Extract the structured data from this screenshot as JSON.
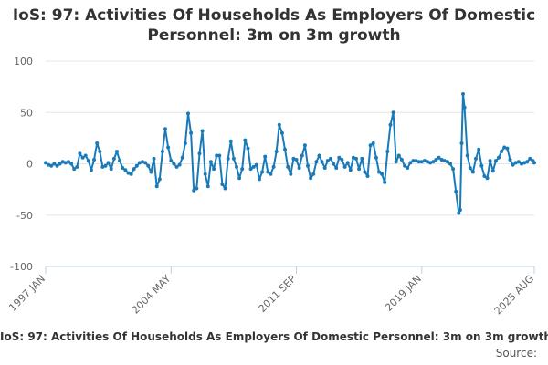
{
  "title": "IoS: 97: Activities Of Households As Employers Of Domestic Personnel: 3m on 3m growth",
  "footer": {
    "title": "IoS: 97: Activities Of Households As Employers Of Domestic Personnel: 3m on 3m growth",
    "source": "Source:"
  },
  "chart_data": {
    "type": "line",
    "title": "IoS: 97: Activities Of Households As Employers Of Domestic Personnel: 3m on 3m growth",
    "xlabel": "",
    "ylabel": "",
    "ylim": [
      -100,
      100
    ],
    "yticks": [
      100,
      50,
      0,
      -50,
      -100
    ],
    "xlim": [
      "1997 JAN",
      "2025 AUG"
    ],
    "xticks": [
      "1997 JAN",
      "2004 MAY",
      "2011 SEP",
      "2019 JAN",
      "2025 AUG"
    ],
    "grid": true,
    "legend": "none",
    "color": "#1a7ab8",
    "series": [
      {
        "markers": true,
        "points": [
          [
            "1997 JAN",
            1
          ],
          [
            "1997 MAR",
            -1
          ],
          [
            "1997 MAY",
            -2
          ],
          [
            "1997 JUL",
            0
          ],
          [
            "1997 SEP",
            -2
          ],
          [
            "1997 NOV",
            0
          ],
          [
            "1998 JAN",
            2
          ],
          [
            "1998 MAR",
            1
          ],
          [
            "1998 MAY",
            2
          ],
          [
            "1998 JUL",
            0
          ],
          [
            "1998 SEP",
            -5
          ],
          [
            "1998 NOV",
            -3
          ],
          [
            "1999 JAN",
            10
          ],
          [
            "1999 MAR",
            6
          ],
          [
            "1999 MAY",
            8
          ],
          [
            "1999 JUL",
            3
          ],
          [
            "1999 SEP",
            -6
          ],
          [
            "1999 NOV",
            4
          ],
          [
            "2000 JAN",
            20
          ],
          [
            "2000 MAR",
            12
          ],
          [
            "2000 MAY",
            -3
          ],
          [
            "2000 JUL",
            -2
          ],
          [
            "2000 SEP",
            1
          ],
          [
            "2000 NOV",
            -5
          ],
          [
            "2001 JAN",
            5
          ],
          [
            "2001 MAR",
            12
          ],
          [
            "2001 MAY",
            3
          ],
          [
            "2001 JUL",
            -4
          ],
          [
            "2001 SEP",
            -6
          ],
          [
            "2001 NOV",
            -9
          ],
          [
            "2002 JAN",
            -10
          ],
          [
            "2002 MAR",
            -5
          ],
          [
            "2002 MAY",
            -2
          ],
          [
            "2002 JUL",
            1
          ],
          [
            "2002 SEP",
            2
          ],
          [
            "2002 NOV",
            1
          ],
          [
            "2003 JAN",
            -2
          ],
          [
            "2003 MAR",
            -8
          ],
          [
            "2003 MAY",
            5
          ],
          [
            "2003 JUL",
            -22
          ],
          [
            "2003 SEP",
            -15
          ],
          [
            "2003 NOV",
            12
          ],
          [
            "2004 JAN",
            34
          ],
          [
            "2004 MAR",
            16
          ],
          [
            "2004 MAY",
            3
          ],
          [
            "2004 JUL",
            0
          ],
          [
            "2004 SEP",
            -3
          ],
          [
            "2004 NOV",
            -1
          ],
          [
            "2005 JAN",
            6
          ],
          [
            "2005 MAR",
            20
          ],
          [
            "2005 MAY",
            49
          ],
          [
            "2005 JUL",
            30
          ],
          [
            "2005 SEP",
            -26
          ],
          [
            "2005 NOV",
            -24
          ],
          [
            "2006 JAN",
            10
          ],
          [
            "2006 MAR",
            32
          ],
          [
            "2006 MAY",
            -10
          ],
          [
            "2006 JUL",
            -22
          ],
          [
            "2006 SEP",
            2
          ],
          [
            "2006 NOV",
            -5
          ],
          [
            "2007 JAN",
            8
          ],
          [
            "2007 MAR",
            8
          ],
          [
            "2007 MAY",
            -20
          ],
          [
            "2007 JUL",
            -24
          ],
          [
            "2007 SEP",
            5
          ],
          [
            "2007 NOV",
            22
          ],
          [
            "2008 JAN",
            5
          ],
          [
            "2008 MAR",
            -3
          ],
          [
            "2008 MAY",
            -14
          ],
          [
            "2008 JUL",
            -5
          ],
          [
            "2008 SEP",
            23
          ],
          [
            "2008 NOV",
            15
          ],
          [
            "2009 JAN",
            -5
          ],
          [
            "2009 MAR",
            -3
          ],
          [
            "2009 MAY",
            -1
          ],
          [
            "2009 JUL",
            -15
          ],
          [
            "2009 SEP",
            -8
          ],
          [
            "2009 NOV",
            7
          ],
          [
            "2010 JAN",
            -8
          ],
          [
            "2010 MAR",
            -10
          ],
          [
            "2010 MAY",
            -3
          ],
          [
            "2010 JUL",
            12
          ],
          [
            "2010 SEP",
            38
          ],
          [
            "2010 NOV",
            30
          ],
          [
            "2011 JAN",
            14
          ],
          [
            "2011 MAR",
            -3
          ],
          [
            "2011 MAY",
            -10
          ],
          [
            "2011 JUL",
            5
          ],
          [
            "2011 SEP",
            4
          ],
          [
            "2011 NOV",
            -4
          ],
          [
            "2012 JAN",
            8
          ],
          [
            "2012 MAR",
            18
          ],
          [
            "2012 MAY",
            -2
          ],
          [
            "2012 JUL",
            -14
          ],
          [
            "2012 SEP",
            -10
          ],
          [
            "2012 NOV",
            2
          ],
          [
            "2013 JAN",
            8
          ],
          [
            "2013 MAR",
            2
          ],
          [
            "2013 MAY",
            -4
          ],
          [
            "2013 JUL",
            3
          ],
          [
            "2013 SEP",
            5
          ],
          [
            "2013 NOV",
            0
          ],
          [
            "2014 JAN",
            -4
          ],
          [
            "2014 MAR",
            6
          ],
          [
            "2014 MAY",
            4
          ],
          [
            "2014 JUL",
            -3
          ],
          [
            "2014 SEP",
            1
          ],
          [
            "2014 NOV",
            -6
          ],
          [
            "2015 JAN",
            6
          ],
          [
            "2015 MAR",
            5
          ],
          [
            "2015 MAY",
            -5
          ],
          [
            "2015 JUL",
            5
          ],
          [
            "2015 SEP",
            -8
          ],
          [
            "2015 NOV",
            -12
          ],
          [
            "2016 JAN",
            18
          ],
          [
            "2016 MAR",
            20
          ],
          [
            "2016 MAY",
            6
          ],
          [
            "2016 JUL",
            -8
          ],
          [
            "2016 SEP",
            -10
          ],
          [
            "2016 NOV",
            -18
          ],
          [
            "2017 JAN",
            12
          ],
          [
            "2017 MAR",
            38
          ],
          [
            "2017 MAY",
            50
          ],
          [
            "2017 JUL",
            2
          ],
          [
            "2017 SEP",
            8
          ],
          [
            "2017 NOV",
            4
          ],
          [
            "2018 JAN",
            -2
          ],
          [
            "2018 MAR",
            -4
          ],
          [
            "2018 MAY",
            1
          ],
          [
            "2018 JUL",
            3
          ],
          [
            "2018 SEP",
            3
          ],
          [
            "2018 NOV",
            2
          ],
          [
            "2019 JAN",
            2
          ],
          [
            "2019 MAR",
            3
          ],
          [
            "2019 MAY",
            2
          ],
          [
            "2019 JUL",
            1
          ],
          [
            "2019 SEP",
            2
          ],
          [
            "2019 NOV",
            4
          ],
          [
            "2020 JAN",
            6
          ],
          [
            "2020 MAR",
            4
          ],
          [
            "2020 MAY",
            3
          ],
          [
            "2020 JUL",
            2
          ],
          [
            "2020 SEP",
            0
          ],
          [
            "2020 NOV",
            -5
          ],
          [
            "2021 JAN",
            -27
          ],
          [
            "2021 MAR",
            -48
          ],
          [
            "2021 APR",
            -45
          ],
          [
            "2021 MAY",
            20
          ],
          [
            "2021 JUN",
            68
          ],
          [
            "2021 JUL",
            55
          ],
          [
            "2021 SEP",
            8
          ],
          [
            "2021 NOV",
            -4
          ],
          [
            "2022 JAN",
            -8
          ],
          [
            "2022 MAR",
            5
          ],
          [
            "2022 MAY",
            14
          ],
          [
            "2022 JUL",
            -2
          ],
          [
            "2022 SEP",
            -12
          ],
          [
            "2022 NOV",
            -14
          ],
          [
            "2023 JAN",
            3
          ],
          [
            "2023 MAR",
            -7
          ],
          [
            "2023 MAY",
            3
          ],
          [
            "2023 JUL",
            6
          ],
          [
            "2023 SEP",
            12
          ],
          [
            "2023 NOV",
            16
          ],
          [
            "2024 JAN",
            15
          ],
          [
            "2024 MAR",
            4
          ],
          [
            "2024 MAY",
            -1
          ],
          [
            "2024 JUL",
            1
          ],
          [
            "2024 SEP",
            2
          ],
          [
            "2024 NOV",
            0
          ],
          [
            "2025 JAN",
            1
          ],
          [
            "2025 MAR",
            2
          ],
          [
            "2025 MAY",
            5
          ],
          [
            "2025 JUL",
            3
          ],
          [
            "2025 AUG",
            1
          ]
        ]
      }
    ]
  }
}
